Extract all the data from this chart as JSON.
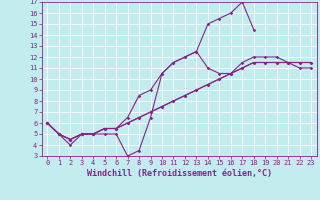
{
  "xlabel": "Windchill (Refroidissement éolien,°C)",
  "xlim": [
    0,
    23
  ],
  "ylim": [
    3,
    17
  ],
  "yticks": [
    3,
    4,
    5,
    6,
    7,
    8,
    9,
    10,
    11,
    12,
    13,
    14,
    15,
    16,
    17
  ],
  "xticks": [
    0,
    1,
    2,
    3,
    4,
    5,
    6,
    7,
    8,
    9,
    10,
    11,
    12,
    13,
    14,
    15,
    16,
    17,
    18,
    19,
    20,
    21,
    22,
    23
  ],
  "bg_color": "#c2ecee",
  "grid_color": "#aadddf",
  "line_color": "#882288",
  "line1_x": [
    0,
    1,
    2,
    3,
    4,
    5,
    6,
    7,
    8,
    9,
    10,
    11,
    12,
    13,
    14,
    15,
    16,
    17,
    18
  ],
  "line1_y": [
    6,
    5,
    4,
    5,
    5,
    5,
    5,
    3,
    3.5,
    6.5,
    10.5,
    11.5,
    12,
    12.5,
    15,
    15.5,
    16,
    17,
    14.5
  ],
  "line2_x": [
    0,
    1,
    2,
    3,
    4,
    5,
    6,
    7,
    8,
    9,
    10,
    11,
    12,
    13,
    14,
    15,
    16,
    17,
    18,
    19,
    20,
    21,
    22,
    23
  ],
  "line2_y": [
    6,
    5,
    4.5,
    5,
    5,
    5.5,
    5.5,
    6.5,
    8.5,
    9,
    10.5,
    11.5,
    12,
    12.5,
    11,
    10.5,
    10.5,
    11.5,
    12,
    12,
    12,
    11.5,
    11,
    11
  ],
  "line3_x": [
    0,
    1,
    2,
    3,
    4,
    5,
    6,
    7,
    8,
    9,
    10,
    11,
    12,
    13,
    14,
    15,
    16,
    17,
    18,
    19,
    20,
    21,
    22,
    23
  ],
  "line3_y": [
    6,
    5,
    4.5,
    5,
    5,
    5.5,
    5.5,
    6,
    6.5,
    7,
    7.5,
    8,
    8.5,
    9,
    9.5,
    10,
    10.5,
    11,
    11.5,
    11.5,
    11.5,
    11.5,
    11.5,
    11.5
  ],
  "line4_x": [
    0,
    1,
    2,
    3,
    4,
    5,
    6,
    7,
    8,
    9,
    10,
    11,
    12,
    13,
    14,
    15,
    16,
    17,
    18,
    19,
    20,
    21,
    22,
    23
  ],
  "line4_y": [
    6,
    5,
    4.5,
    5,
    5,
    5.5,
    5.5,
    6,
    6.5,
    7,
    7.5,
    8,
    8.5,
    9,
    9.5,
    10,
    10.5,
    11,
    11.5,
    11.5,
    11.5,
    11.5,
    11.5,
    11.5
  ],
  "marker": "D",
  "markersize": 1.8,
  "linewidth": 0.8,
  "tick_fontsize": 5,
  "label_fontsize": 6
}
